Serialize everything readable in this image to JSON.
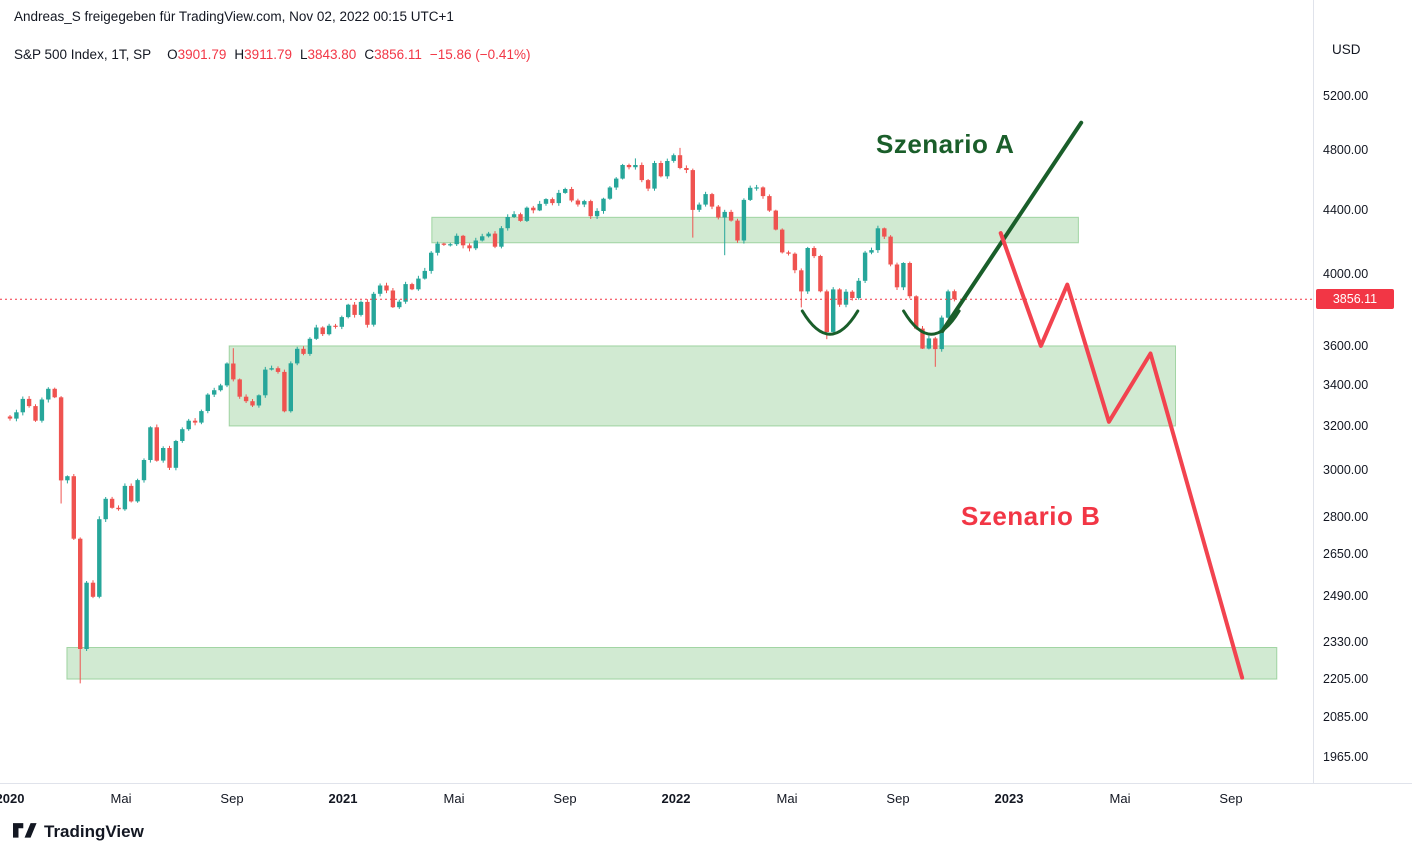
{
  "attribution": "Andreas_S freigegeben für TradingView.com, Nov 02, 2022 00:15 UTC+1",
  "legend": {
    "symbol": "S&P 500 Index, 1T, SP",
    "open_label": "O",
    "open_value": "3901.79",
    "high_label": "H",
    "high_value": "3911.79",
    "low_label": "L",
    "low_value": "3843.80",
    "close_label": "C",
    "close_value": "3856.11",
    "change": "−15.86 (−0.41%)"
  },
  "price_axis": {
    "currency": "USD",
    "ticks": [
      "5200.00",
      "4800.00",
      "4400.00",
      "4000.00",
      "3600.00",
      "3400.00",
      "3200.00",
      "3000.00",
      "2800.00",
      "2650.00",
      "2490.00",
      "2330.00",
      "2205.00",
      "2085.00",
      "1965.00"
    ],
    "last_price_badge": "3856.11"
  },
  "time_axis": {
    "labels": [
      {
        "text": "2020",
        "month": 0,
        "type": "year"
      },
      {
        "text": "Mai",
        "month": 4,
        "type": "month"
      },
      {
        "text": "Sep",
        "month": 8,
        "type": "month"
      },
      {
        "text": "2021",
        "month": 12,
        "type": "year"
      },
      {
        "text": "Mai",
        "month": 16,
        "type": "month"
      },
      {
        "text": "Sep",
        "month": 20,
        "type": "month"
      },
      {
        "text": "2022",
        "month": 24,
        "type": "year"
      },
      {
        "text": "Mai",
        "month": 28,
        "type": "month"
      },
      {
        "text": "Sep",
        "month": 32,
        "type": "month"
      },
      {
        "text": "2023",
        "month": 36,
        "type": "year"
      },
      {
        "text": "Mai",
        "month": 40,
        "type": "month"
      },
      {
        "text": "Sep",
        "month": 44,
        "type": "month"
      }
    ]
  },
  "logo": {
    "text": "TradingView"
  },
  "colors": {
    "candle_up": "#26a69a",
    "candle_down": "#ef5350",
    "down": "#f23645",
    "scenario_a": "#1a5e2a",
    "scenario_b": "#f2434f",
    "zone_fill": "rgba(76,175,80,0.26)",
    "zone_stroke": "rgba(76,175,80,0.45)",
    "badge": "#f23645",
    "text": "#131722"
  },
  "annotations": {
    "last_price_line": 3856.11,
    "scenario_a": {
      "label": "Szenario A",
      "color": "#1a5e2a",
      "points": [
        [
          33.6,
          3680
        ],
        [
          38.6,
          5000
        ]
      ]
    },
    "scenario_b": {
      "label": "Szenario B",
      "color": "#f2434f",
      "points": [
        [
          35.7,
          4250
        ],
        [
          37.15,
          3600
        ],
        [
          38.1,
          3940
        ],
        [
          39.6,
          3220
        ],
        [
          41.1,
          3560
        ],
        [
          44.4,
          2210
        ]
      ]
    },
    "arcs": [
      {
        "start": [
          28.55,
          3790
        ],
        "control": [
          29.55,
          3540
        ],
        "end": [
          30.55,
          3790
        ]
      },
      {
        "start": [
          32.2,
          3790
        ],
        "control": [
          33.2,
          3540
        ],
        "end": [
          34.2,
          3790
        ]
      }
    ],
    "zones": [
      {
        "from_month": 15.2,
        "to_month": 38.5,
        "top_price": 4350,
        "bottom_price": 4190
      },
      {
        "from_month": 7.9,
        "to_month": 42.0,
        "top_price": 3600,
        "bottom_price": 3200
      },
      {
        "from_month": 2.05,
        "to_month": 45.65,
        "top_price": 2310,
        "bottom_price": 2205
      }
    ]
  },
  "chart_data": {
    "type": "candlestick",
    "title": "S&P 500 Index, 1T, SP",
    "symbol": "S&P 500 Index",
    "interval": "1T",
    "exchange": "SP",
    "currency": "USD",
    "scale": "log",
    "grid": false,
    "x_range": [
      "2020-01",
      "2023-11"
    ],
    "ylim": [
      1900,
      5300
    ],
    "frequency": "weekly",
    "start_date": "2020-01-03",
    "first_open": 3245,
    "weekly_closes": [
      3235,
      3265,
      3330,
      3295,
      3225,
      3327,
      3380,
      3338,
      2954,
      2972,
      2711,
      2305,
      2541,
      2489,
      2790,
      2875,
      2837,
      2831,
      2930,
      2864,
      2955,
      3044,
      3194,
      3041,
      3098,
      3009,
      3130,
      3185,
      3225,
      3216,
      3271,
      3351,
      3373,
      3397,
      3508,
      3427,
      3341,
      3319,
      3298,
      3348,
      3477,
      3484,
      3465,
      3270,
      3509,
      3585,
      3558,
      3638,
      3699,
      3663,
      3709,
      3703,
      3756,
      3825,
      3768,
      3841,
      3714,
      3887,
      3935,
      3906,
      3811,
      3842,
      3943,
      3913,
      3975,
      4020,
      4129,
      4185,
      4180,
      4181,
      4233,
      4174,
      4156,
      4204,
      4230,
      4247,
      4166,
      4281,
      4352,
      4370,
      4327,
      4412,
      4395,
      4437,
      4468,
      4442,
      4509,
      4535,
      4459,
      4433,
      4455,
      4357,
      4391,
      4471,
      4545,
      4605,
      4698,
      4683,
      4698,
      4595,
      4538,
      4712,
      4621,
      4726,
      4766,
      4677,
      4663,
      4398,
      4432,
      4501,
      4419,
      4349,
      4385,
      4329,
      4204,
      4463,
      4543,
      4546,
      4488,
      4393,
      4272,
      4131,
      4123,
      4024,
      3901,
      4158,
      4109,
      3901,
      3675,
      3912,
      3825,
      3899,
      3863,
      3962,
      4130,
      4145,
      4280,
      4228,
      4058,
      3924,
      4067,
      3873,
      3693,
      3586,
      3640,
      3583,
      3753,
      3901,
      3856.11
    ],
    "extremes": {
      "8": {
        "low": 2855
      },
      "11": {
        "low": 2191
      },
      "35": {
        "high": 3588
      },
      "98": {
        "high": 4744
      },
      "105": {
        "high": 4818
      },
      "107": {
        "low": 4222
      },
      "112": {
        "low": 4114
      },
      "124": {
        "low": 3810
      },
      "128": {
        "low": 3636
      },
      "143": {
        "low": 3584
      },
      "145": {
        "low": 3491
      },
      "148": {
        "open": 3901.79,
        "high": 3911.79,
        "low": 3843.8
      }
    },
    "last_candle": {
      "open": 3901.79,
      "high": 3911.79,
      "low": 3843.8,
      "close": 3856.11,
      "change": "−15.86 (−0.41%)"
    }
  }
}
